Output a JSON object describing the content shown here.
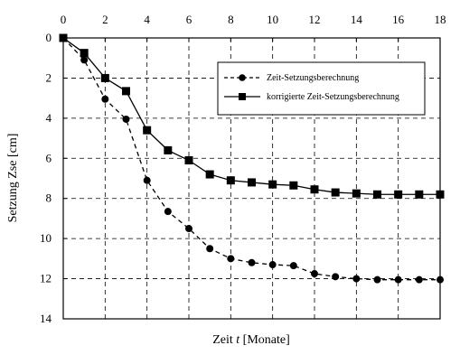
{
  "chart_data": {
    "type": "line",
    "xlabel_prefix": "Zeit ",
    "xlabel_var": "t",
    "xlabel_suffix": " [Monate]",
    "ylabel": "Setzung Zse [cm]",
    "xlim": [
      0,
      18
    ],
    "ylim": [
      0,
      14
    ],
    "y_inverted": true,
    "x_axis_position": "top",
    "grid": true,
    "grid_style": "dashed",
    "legend_position": "right, upper-middle",
    "x_ticks": [
      0,
      2,
      4,
      6,
      8,
      10,
      12,
      14,
      16,
      18
    ],
    "y_ticks": [
      0,
      2,
      4,
      6,
      8,
      10,
      12,
      14
    ],
    "series": [
      {
        "name": "Zeit-Setzungsberechnung",
        "marker": "circle",
        "line_style": "dashed",
        "color": "#000000",
        "x": [
          0,
          1,
          2,
          3,
          4,
          5,
          6,
          7,
          8,
          9,
          10,
          11,
          12,
          13,
          14,
          15,
          16,
          17,
          18
        ],
        "y": [
          0,
          1.1,
          3.05,
          4.05,
          7.1,
          8.65,
          9.5,
          10.5,
          11.0,
          11.2,
          11.3,
          11.35,
          11.75,
          11.9,
          12.0,
          12.05,
          12.05,
          12.05,
          12.05
        ]
      },
      {
        "name": "korrigierte Zeit-Setzungsberechnung",
        "marker": "square",
        "line_style": "solid",
        "color": "#000000",
        "x": [
          0,
          1,
          2,
          3,
          4,
          5,
          6,
          7,
          8,
          9,
          10,
          11,
          12,
          13,
          14,
          15,
          16,
          17,
          18
        ],
        "y": [
          0,
          0.75,
          2.0,
          2.65,
          4.6,
          5.6,
          6.1,
          6.8,
          7.1,
          7.2,
          7.3,
          7.35,
          7.55,
          7.7,
          7.75,
          7.8,
          7.8,
          7.8,
          7.8
        ]
      }
    ]
  }
}
